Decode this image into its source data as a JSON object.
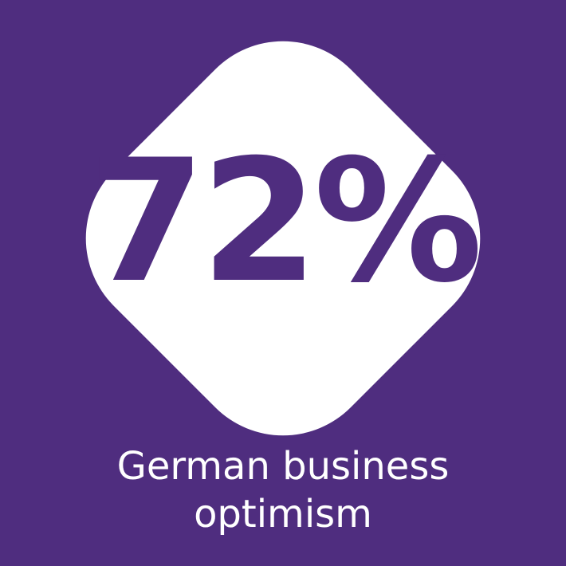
{
  "colors": {
    "background": "#4f2d7f",
    "shape": "#ffffff",
    "stat_text": "#4f2d7f",
    "label_text": "#ffffff"
  },
  "stat": {
    "value": "72%"
  },
  "label": {
    "line1": "German business",
    "line2": "optimism"
  }
}
